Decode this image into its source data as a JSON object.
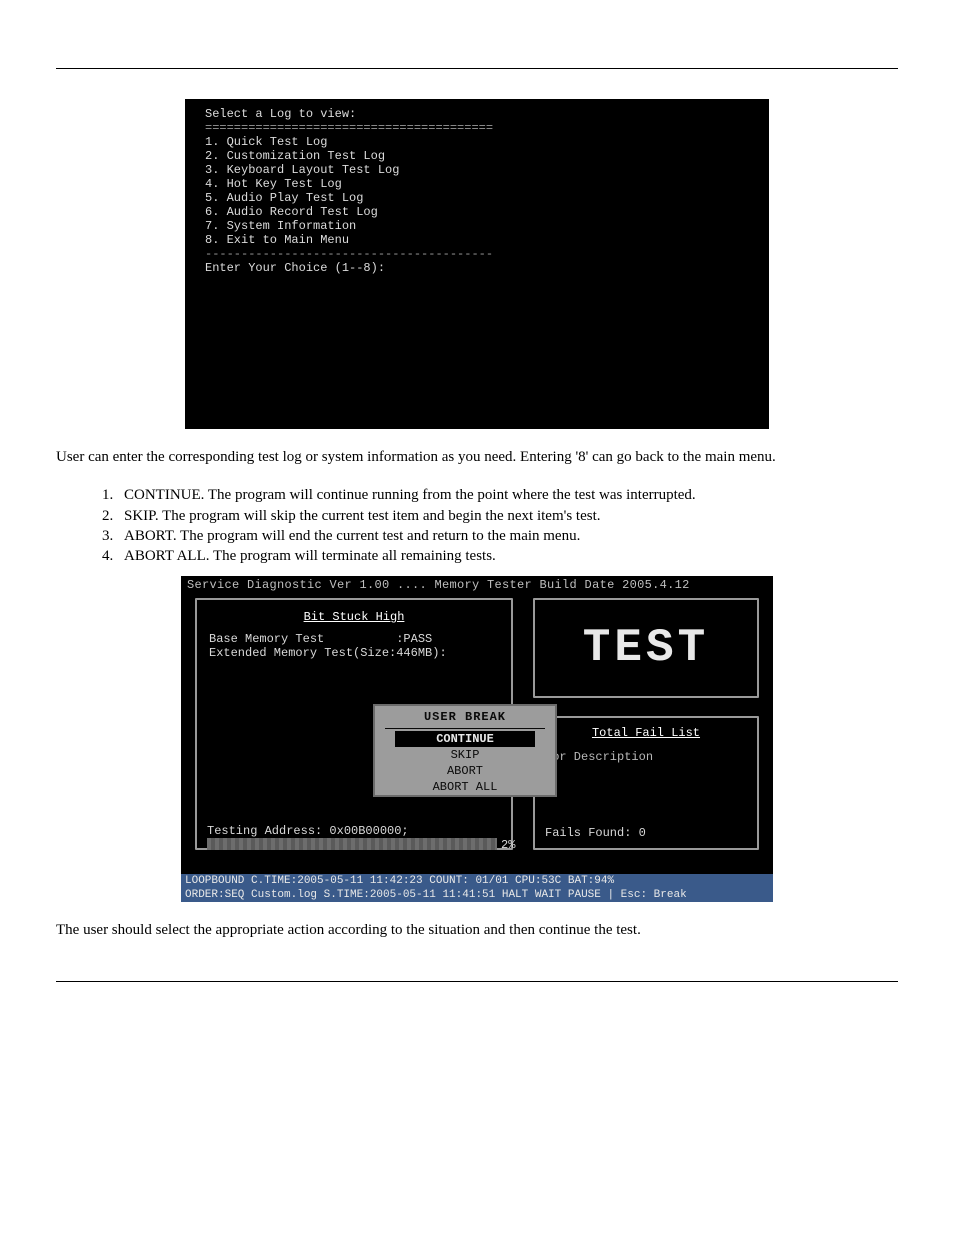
{
  "term1": {
    "title": "Select a Log to view:",
    "sep": "========================================",
    "items": [
      "1. Quick Test Log",
      "2. Customization Test Log",
      "3. Keyboard Layout Test Log",
      "4. Hot Key Test Log",
      "5. Audio Play Test Log",
      "6. Audio Record Test Log",
      "7. System Information",
      "8. Exit to Main Menu"
    ],
    "sep2": "----------------------------------------",
    "prompt": "Enter Your Choice (1--8):"
  },
  "midtext": {
    "p1": "User can enter the corresponding test log or system information as you need. Entering '8' can go back to the main menu.",
    "n1_ix": "1.",
    "n1": "CONTINUE. The program will continue running from the point where the test was interrupted.",
    "n2_ix": "2.",
    "n2": "SKIP. The program will skip the current test item and begin the next item's test.",
    "n3_ix": "3.",
    "n3": "ABORT. The program will end the current test and return to the main menu.",
    "n4_ix": "4.",
    "n4": "ABORT ALL. The program will terminate all remaining tests."
  },
  "diag": {
    "title": "Service Diagnostic Ver 1.00 .... Memory Tester Build Date 2005.4.12",
    "left_heading": "Bit Stuck High",
    "left_l1": "Base Memory Test          :PASS",
    "left_l2": "Extended Memory Test(Size:446MB):",
    "addr": "Testing Address: 0x00B00000;",
    "pct": "2%",
    "test_label": "TEST",
    "fail_heading": "Total Fail List",
    "fail_cols": "ror  Description",
    "fails_found": "Fails Found: 0",
    "dialog_title": "USER BREAK",
    "dialog_opts": [
      "CONTINUE",
      "SKIP",
      "ABORT",
      "ABORT ALL"
    ],
    "dialog_selected": 0,
    "status1": "LOOPBOUND         C.TIME:2005-05-11 11:42:23 COUNT: 01/01  CPU:53C BAT:94%",
    "status2": "ORDER:SEQ   Custom.log S.TIME:2005-05-11 11:41:51 HALT WAIT PAUSE  | Esc: Break"
  },
  "p_after": "The user should select the appropriate action according to the situation and then continue the test."
}
